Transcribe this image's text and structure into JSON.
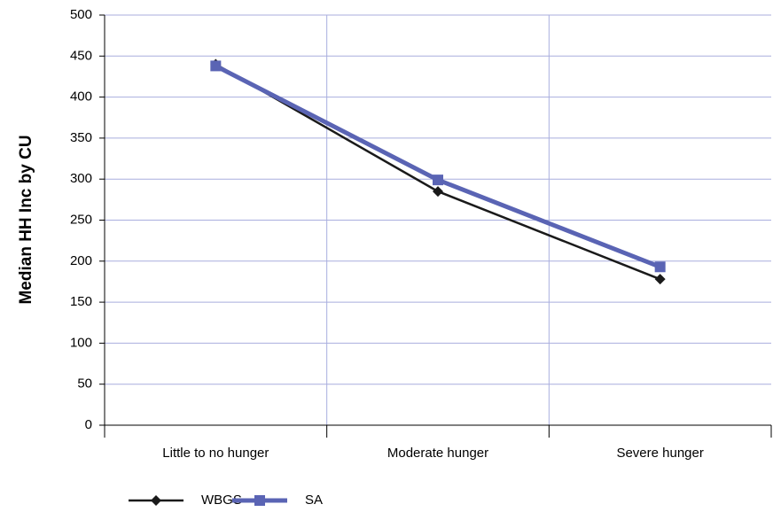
{
  "chart_data": {
    "type": "line",
    "y_label": "Median HH Inc by CU",
    "categories": [
      "Little to no hunger",
      "Moderate hunger",
      "Severe hunger"
    ],
    "series": [
      {
        "name": "WBGS",
        "color": "#1a1a1a",
        "marker": "diamond",
        "values": [
          440,
          285,
          178
        ]
      },
      {
        "name": "SA",
        "color": "#5a64b4",
        "marker": "square",
        "values": [
          438,
          299,
          193
        ]
      }
    ],
    "ylim": [
      0,
      500
    ],
    "yticks": [
      0,
      50,
      100,
      150,
      200,
      250,
      300,
      350,
      400,
      450,
      500
    ],
    "grid": true,
    "legend": "bottom"
  }
}
